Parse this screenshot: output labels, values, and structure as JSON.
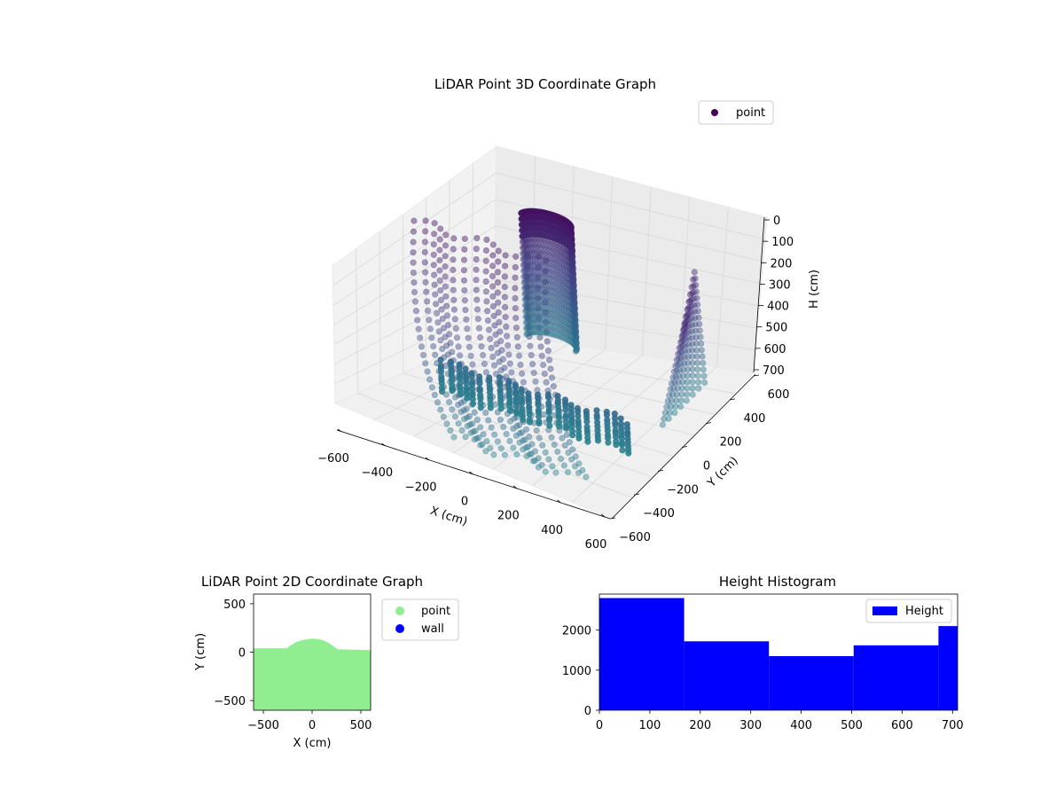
{
  "chart_data": [
    {
      "type": "scatter",
      "projection": "3d",
      "title": "LiDAR Point 3D Coordinate Graph",
      "xlabel": "X (cm)",
      "ylabel": "Y (cm)",
      "zlabel": "H (cm)",
      "xlim": [
        -600,
        600
      ],
      "ylim": [
        -600,
        600
      ],
      "zlim": [
        700,
        0
      ],
      "z_axis_inverted": true,
      "xticks": [
        "−600",
        "−400",
        "−200",
        "0",
        "200",
        "400",
        "600"
      ],
      "yticks": [
        "−600",
        "−400",
        "−200",
        "0",
        "200",
        "400",
        "600"
      ],
      "zticks": [
        "0",
        "100",
        "200",
        "300",
        "400",
        "500",
        "600",
        "700"
      ],
      "legend": [
        {
          "label": "point",
          "color": "#440154"
        }
      ],
      "legend_position": "upper-right",
      "colormap": "viridis",
      "grid": true,
      "series": [
        {
          "name": "point",
          "description_values": "dense rotating LiDAR scan: curved wall surfaces left and right, tall cylindrical column near center-back, floor rings near H≈600-700"
        }
      ]
    },
    {
      "type": "area",
      "title": "LiDAR Point 2D Coordinate Graph",
      "xlabel": "X (cm)",
      "ylabel": "Y (cm)",
      "xlim": [
        -600,
        600
      ],
      "ylim": [
        -600,
        600
      ],
      "xticks": [
        "−500",
        "0",
        "500"
      ],
      "yticks": [
        "−500",
        "0",
        "500"
      ],
      "legend": [
        {
          "label": "point",
          "color": "#90ee90"
        },
        {
          "label": "wall",
          "color": "#0000ff"
        }
      ],
      "legend_position": "outside-right",
      "boundary": {
        "x": [
          -600,
          -260,
          -220,
          -160,
          -100,
          -40,
          0,
          60,
          120,
          180,
          220,
          260,
          420,
          600
        ],
        "y": [
          40,
          40,
          70,
          105,
          125,
          135,
          140,
          135,
          120,
          90,
          60,
          30,
          25,
          20
        ]
      },
      "fill_to": -600
    },
    {
      "type": "bar",
      "subtype": "histogram",
      "title": "Height Histogram",
      "xlim": [
        0,
        710
      ],
      "ylim": [
        0,
        2900
      ],
      "xticks": [
        "0",
        "100",
        "200",
        "300",
        "400",
        "500",
        "600",
        "700"
      ],
      "yticks": [
        "0",
        "1000",
        "2000"
      ],
      "bin_edges": [
        0,
        168,
        336,
        504,
        672,
        710
      ],
      "values": [
        2800,
        1720,
        1350,
        1620,
        2100
      ],
      "color": "#0000ff",
      "legend": [
        {
          "label": "Height",
          "color": "#0000ff"
        }
      ],
      "legend_position": "upper-right"
    }
  ]
}
